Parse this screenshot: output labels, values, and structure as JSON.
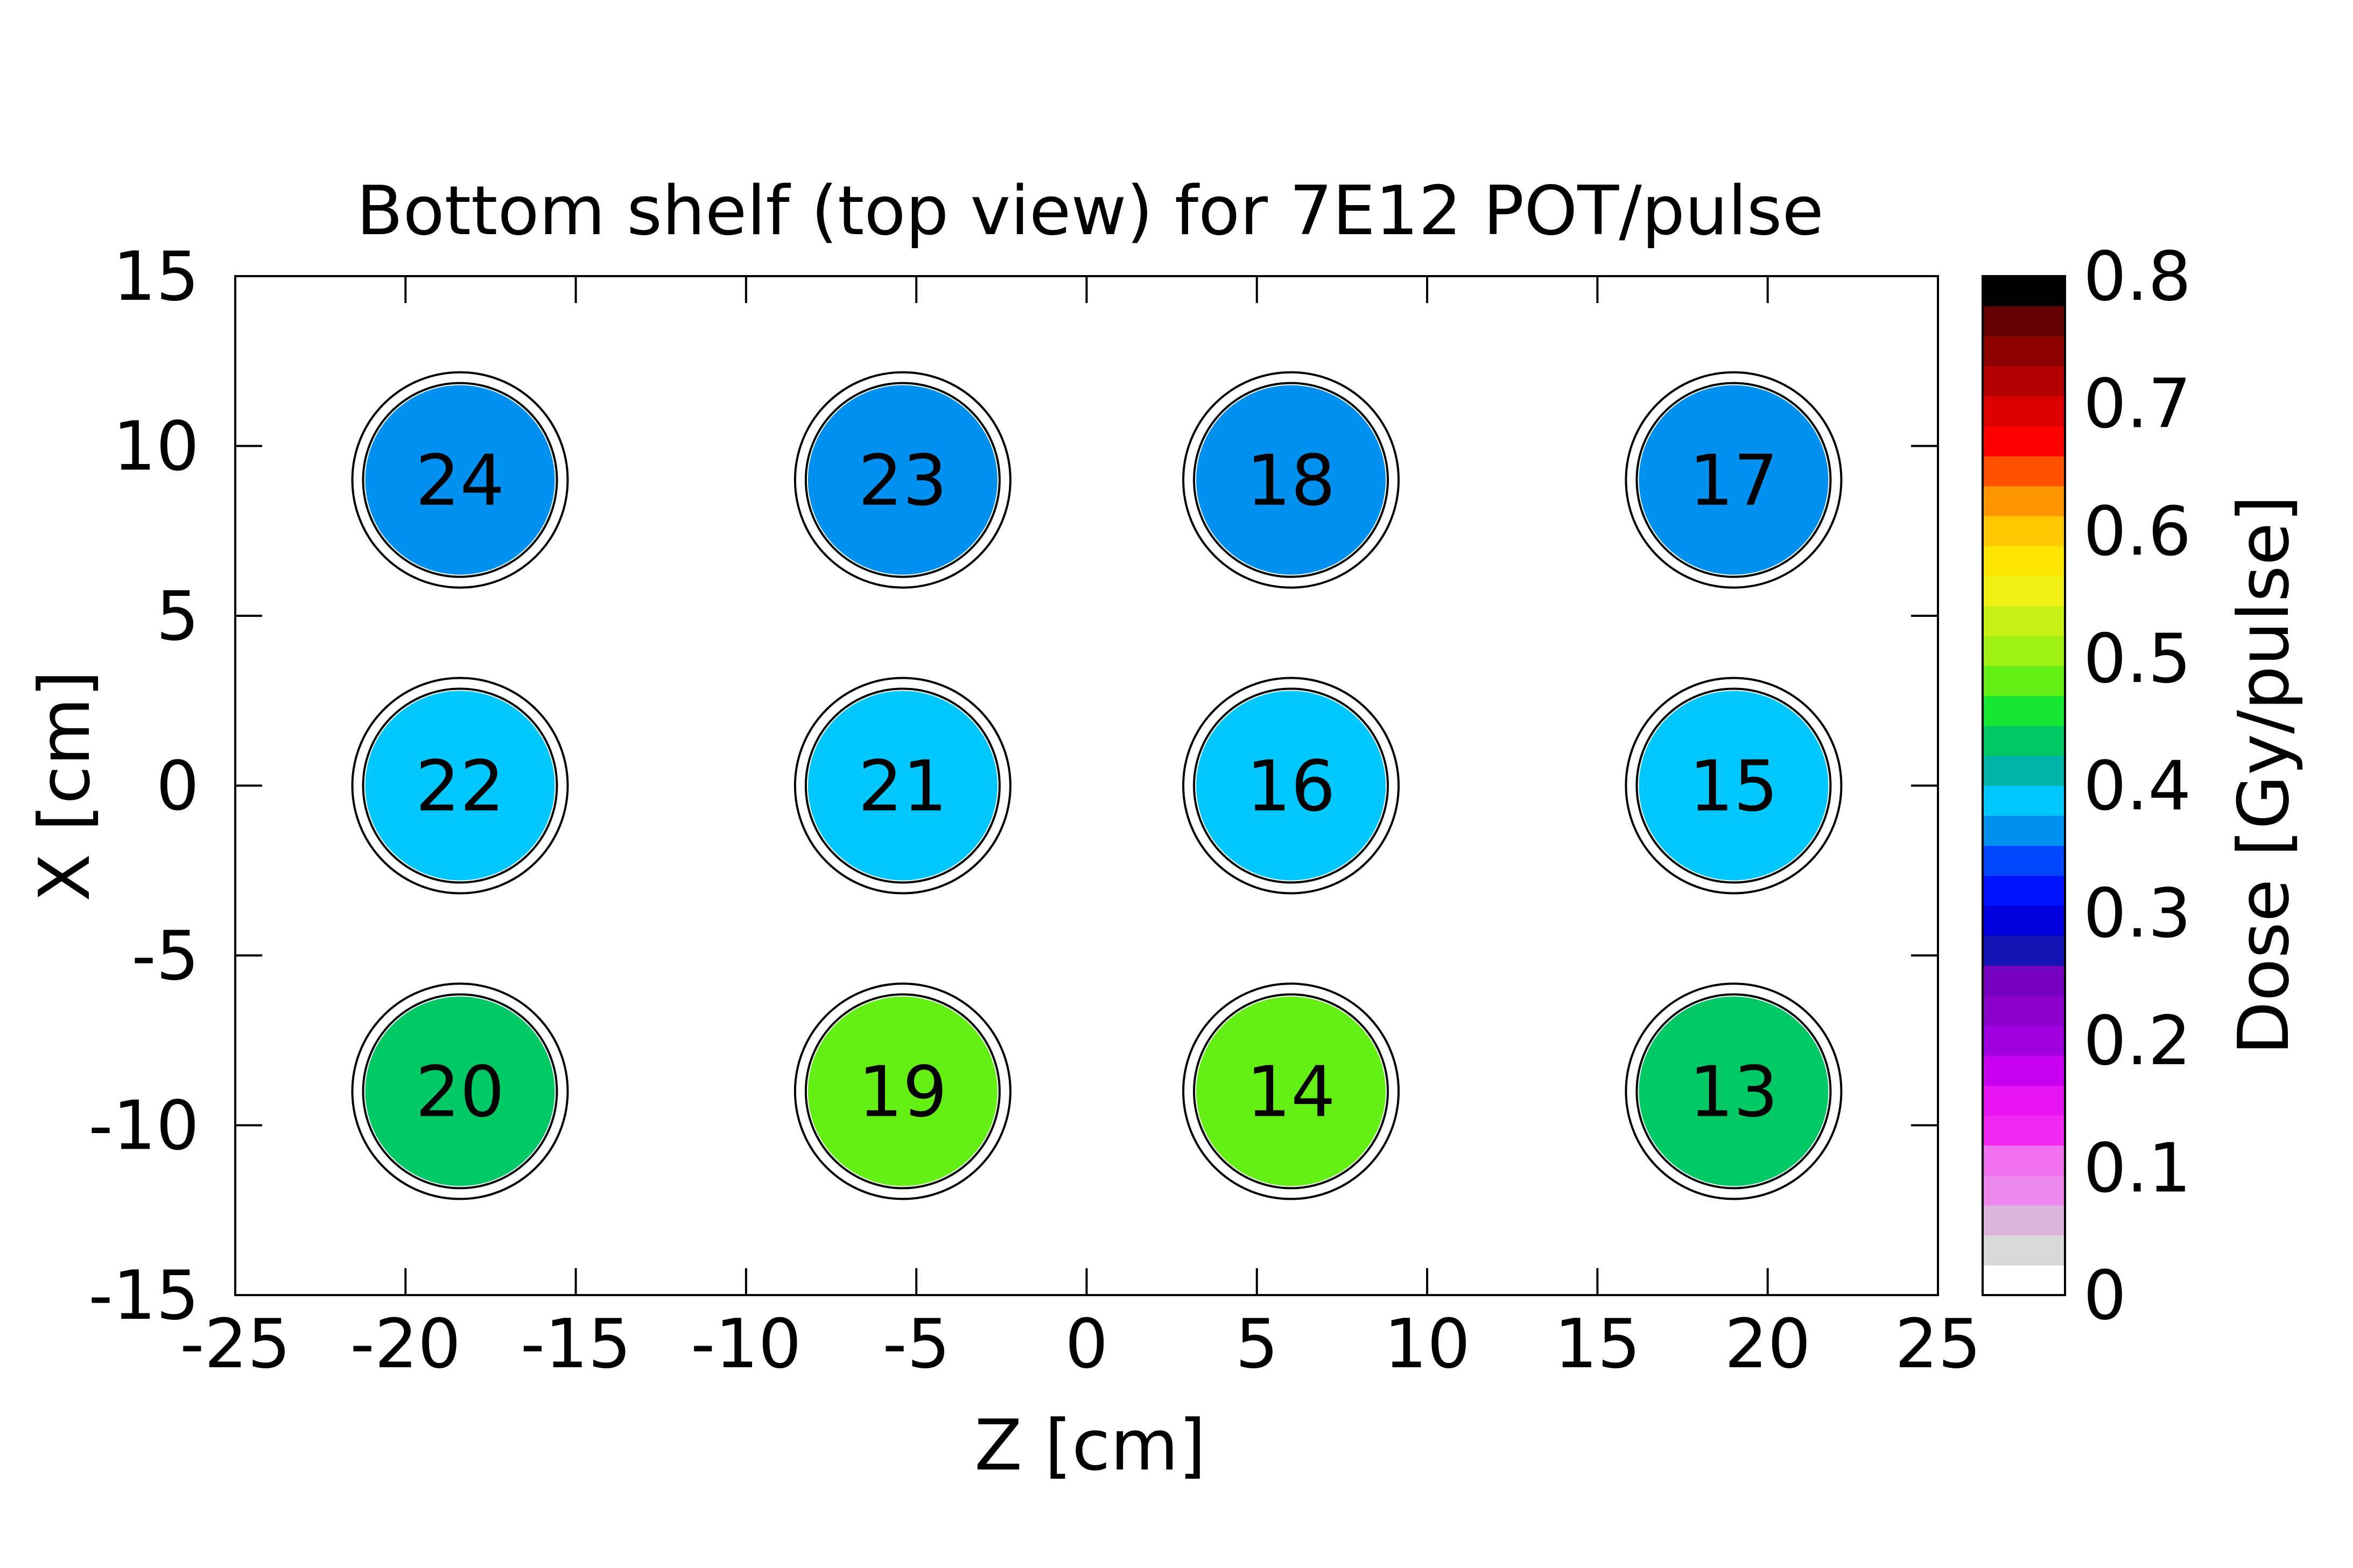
{
  "chart_data": {
    "type": "scatter",
    "title": "Bottom shelf (top view) for 7E12 POT/pulse",
    "xlabel": "Z [cm]",
    "ylabel": "X [cm]",
    "xlim": [
      -25,
      25
    ],
    "ylim": [
      -15,
      15
    ],
    "xticks": [
      "-25",
      "-20",
      "-15",
      "-10",
      "-5",
      "0",
      "5",
      "10",
      "15",
      "20",
      "25"
    ],
    "yticks": [
      "15",
      "10",
      "5",
      "0",
      "-5",
      "-10",
      "-15"
    ],
    "points": [
      {
        "label": "24",
        "z": -18.4,
        "x": 9.0,
        "dose": 0.36
      },
      {
        "label": "23",
        "z": -5.4,
        "x": 9.0,
        "dose": 0.36
      },
      {
        "label": "18",
        "z": 6.0,
        "x": 9.0,
        "dose": 0.36
      },
      {
        "label": "17",
        "z": 19.0,
        "x": 9.0,
        "dose": 0.36
      },
      {
        "label": "22",
        "z": -18.4,
        "x": 0.0,
        "dose": 0.39
      },
      {
        "label": "21",
        "z": -5.4,
        "x": 0.0,
        "dose": 0.39
      },
      {
        "label": "16",
        "z": 6.0,
        "x": 0.0,
        "dose": 0.39
      },
      {
        "label": "15",
        "z": 19.0,
        "x": 0.0,
        "dose": 0.39
      },
      {
        "label": "20",
        "z": -18.4,
        "x": -9.0,
        "dose": 0.44
      },
      {
        "label": "19",
        "z": -5.4,
        "x": -9.0,
        "dose": 0.48
      },
      {
        "label": "14",
        "z": 6.0,
        "x": -9.0,
        "dose": 0.48
      },
      {
        "label": "13",
        "z": 19.0,
        "x": -9.0,
        "dose": 0.44
      }
    ],
    "colorbar": {
      "label": "Dose [Gy/pulse]",
      "range": [
        0,
        0.8
      ],
      "ticks": [
        "0",
        "0.1",
        "0.2",
        "0.3",
        "0.4",
        "0.5",
        "0.6",
        "0.7",
        "0.8"
      ],
      "colors": [
        "#ffffff",
        "#d8d8d8",
        "#dcb4dc",
        "#ee88ee",
        "#f070f0",
        "#f028f0",
        "#e614f0",
        "#c800f0",
        "#a000e0",
        "#8c00cc",
        "#7800c0",
        "#1414b4",
        "#0000dc",
        "#0014ff",
        "#0048ff",
        "#0090f0",
        "#00c8ff",
        "#00b4a8",
        "#00c864",
        "#14e632",
        "#64f014",
        "#a0f014",
        "#c8f014",
        "#f0f014",
        "#ffe600",
        "#ffc800",
        "#ff9600",
        "#ff5000",
        "#ff0000",
        "#dc0000",
        "#b40000",
        "#8c0000",
        "#640000",
        "#000000"
      ]
    }
  }
}
